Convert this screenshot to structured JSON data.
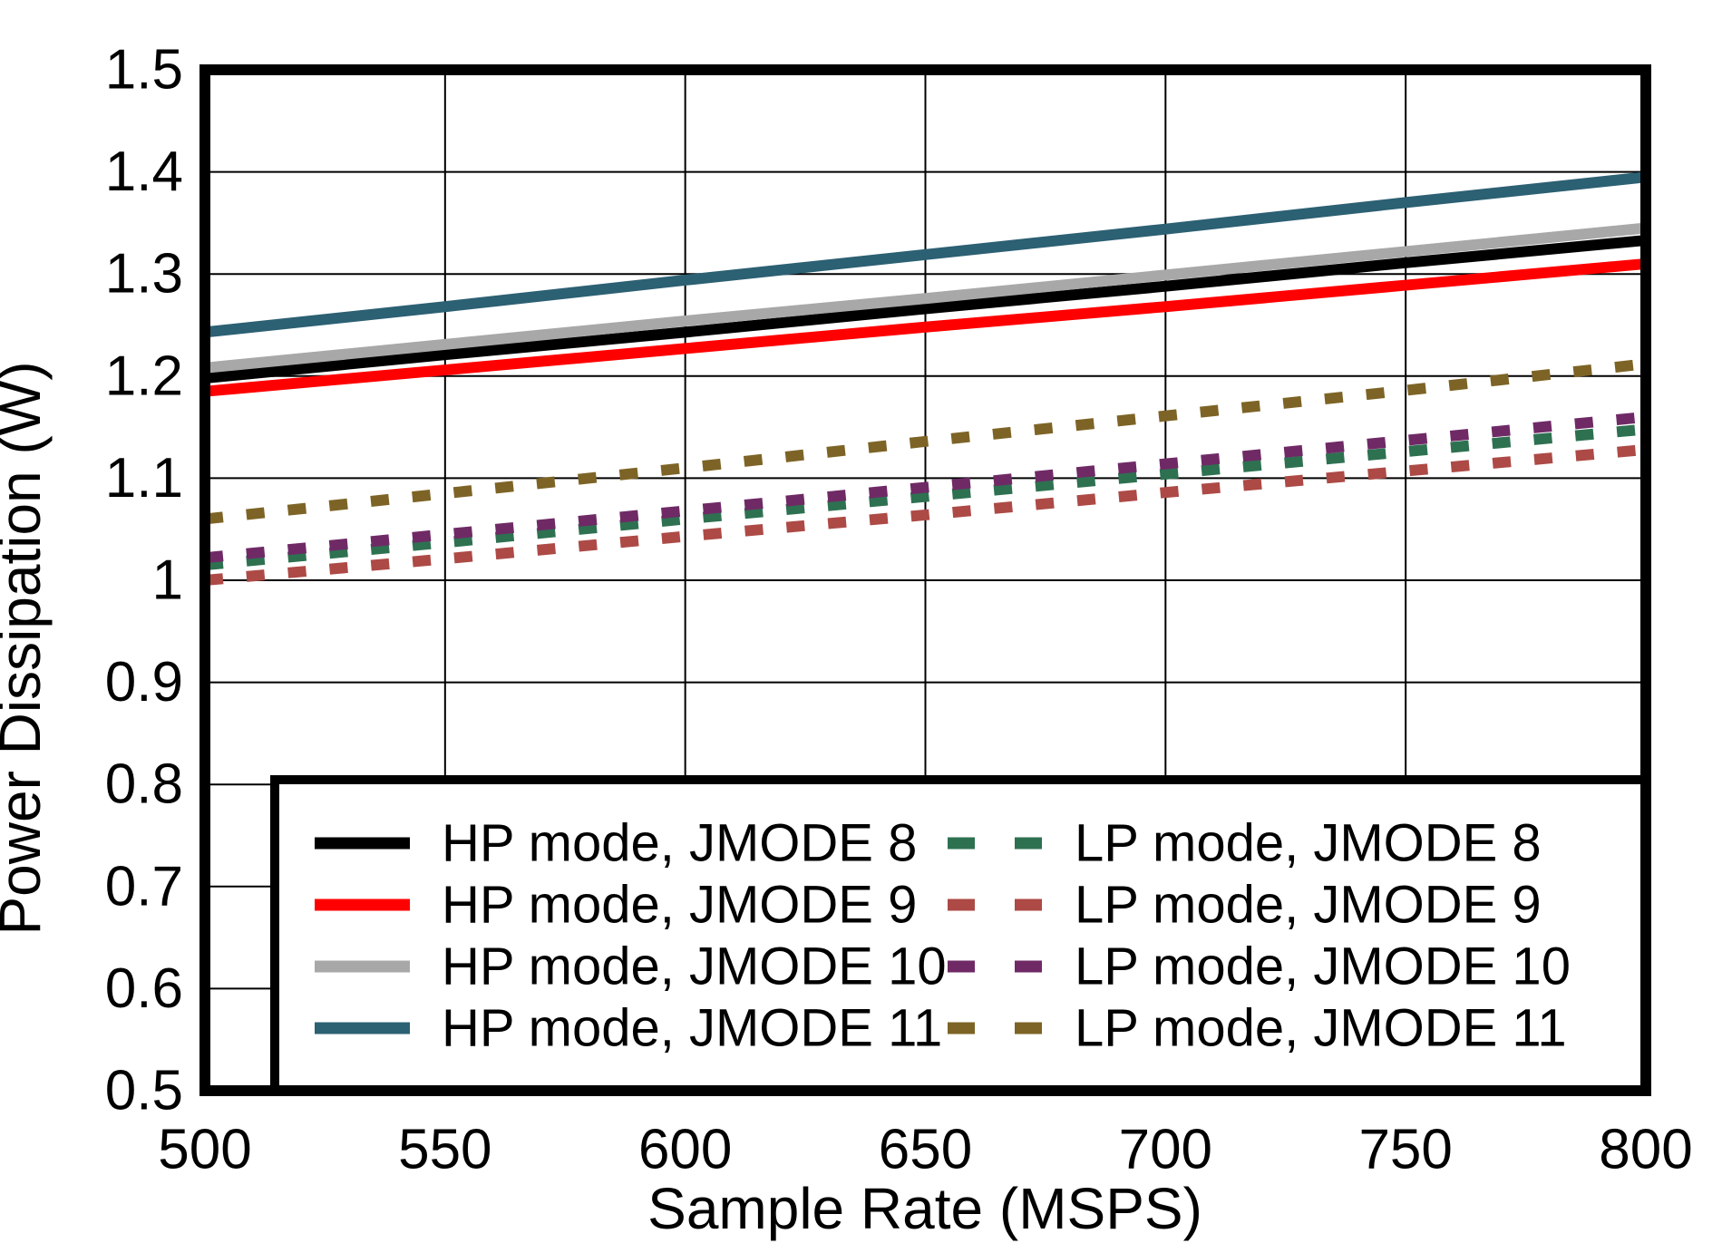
{
  "chart_data": {
    "type": "line",
    "title": "",
    "xlabel": "Sample Rate (MSPS)",
    "ylabel": "Power Dissipation (W)",
    "xlim": [
      500,
      800
    ],
    "ylim": [
      0.5,
      1.5
    ],
    "xticks": [
      500,
      550,
      600,
      650,
      700,
      750,
      800
    ],
    "xtick_labels": [
      "500",
      "550",
      "600",
      "650",
      "700",
      "750",
      "800"
    ],
    "yticks": [
      0.5,
      0.6,
      0.7,
      0.8,
      0.9,
      1.0,
      1.1,
      1.2,
      1.3,
      1.4,
      1.5
    ],
    "ytick_labels": [
      "0.5",
      "0.6",
      "0.7",
      "0.8",
      "0.9",
      "1",
      "1.1",
      "1.2",
      "1.3",
      "1.4",
      "1.5"
    ],
    "grid": true,
    "legend_position": "inside-bottom",
    "x": [
      500,
      550,
      600,
      650,
      700,
      750,
      800
    ],
    "series": [
      {
        "name": "HP mode, JMODE 8",
        "color": "#000000",
        "line_style": "solid",
        "values": [
          1.198,
          1.221,
          1.243,
          1.266,
          1.288,
          1.311,
          1.333
        ]
      },
      {
        "name": "HP mode, JMODE 9",
        "color": "#FF0000",
        "line_style": "solid",
        "values": [
          1.185,
          1.206,
          1.227,
          1.248,
          1.268,
          1.289,
          1.31
        ]
      },
      {
        "name": "HP mode, JMODE 10",
        "color": "#A8A8A8",
        "line_style": "solid",
        "values": [
          1.208,
          1.231,
          1.254,
          1.276,
          1.299,
          1.322,
          1.345
        ]
      },
      {
        "name": "HP mode, JMODE 11",
        "color": "#2C6073",
        "line_style": "solid",
        "values": [
          1.243,
          1.268,
          1.294,
          1.319,
          1.344,
          1.37,
          1.395
        ]
      },
      {
        "name": "LP mode, JMODE 8",
        "color": "#2E7151",
        "line_style": "dashed",
        "values": [
          1.015,
          1.037,
          1.06,
          1.082,
          1.104,
          1.126,
          1.148
        ]
      },
      {
        "name": "LP mode, JMODE 9",
        "color": "#AD4A46",
        "line_style": "dashed",
        "values": [
          1.0,
          1.021,
          1.043,
          1.064,
          1.086,
          1.107,
          1.128
        ]
      },
      {
        "name": "LP mode, JMODE 10",
        "color": "#6F2A66",
        "line_style": "dashed",
        "values": [
          1.022,
          1.045,
          1.068,
          1.091,
          1.114,
          1.137,
          1.16
        ]
      },
      {
        "name": "LP mode, JMODE 11",
        "color": "#7D6426",
        "line_style": "dashed",
        "values": [
          1.06,
          1.085,
          1.11,
          1.136,
          1.161,
          1.186,
          1.212
        ]
      }
    ],
    "legend_columns": [
      [
        "HP mode, JMODE 8",
        "HP mode, JMODE 9",
        "HP mode, JMODE 10",
        "HP mode, JMODE 11"
      ],
      [
        "LP mode, JMODE 8",
        "LP mode, JMODE 9",
        "LP mode, JMODE 10",
        "LP mode, JMODE 11"
      ]
    ]
  }
}
